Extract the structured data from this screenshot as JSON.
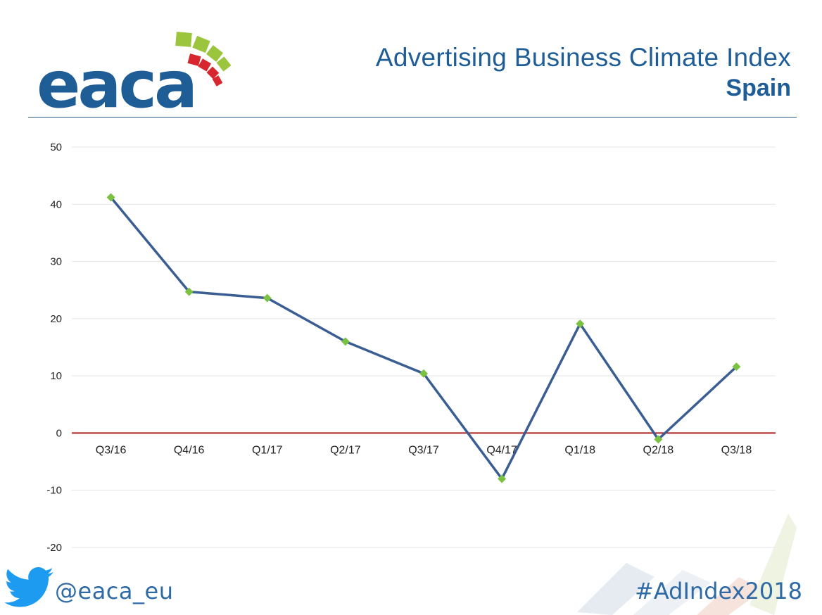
{
  "header": {
    "logo_text": "eaca",
    "title": "Advertising Business Climate Index",
    "subtitle": "Spain"
  },
  "footer": {
    "twitter_icon": "twitter-bird-icon",
    "handle": "@eaca_eu",
    "hashtag": "#AdIndex2018"
  },
  "colors": {
    "brand_blue": "#1f5d97",
    "line": "#3a5e93",
    "marker": "#7cc242",
    "zero_line": "#b01c1c",
    "logo_green": "#9bc53d",
    "logo_red": "#d7262e"
  },
  "chart_data": {
    "type": "line",
    "title": "",
    "xlabel": "",
    "ylabel": "",
    "categories": [
      "Q3/16",
      "Q4/16",
      "Q1/17",
      "Q2/17",
      "Q3/17",
      "Q4/17",
      "Q1/18",
      "Q2/18",
      "Q3/18"
    ],
    "series": [
      {
        "values": [
          41.2,
          24.7,
          23.6,
          16.0,
          10.4,
          -8.0,
          19.1,
          -1.1,
          11.6
        ]
      }
    ],
    "ylim": [
      -20,
      50
    ],
    "yticks": [
      50,
      40,
      30,
      20,
      10,
      0,
      -10,
      -20
    ],
    "grid": true,
    "legend": "none"
  }
}
